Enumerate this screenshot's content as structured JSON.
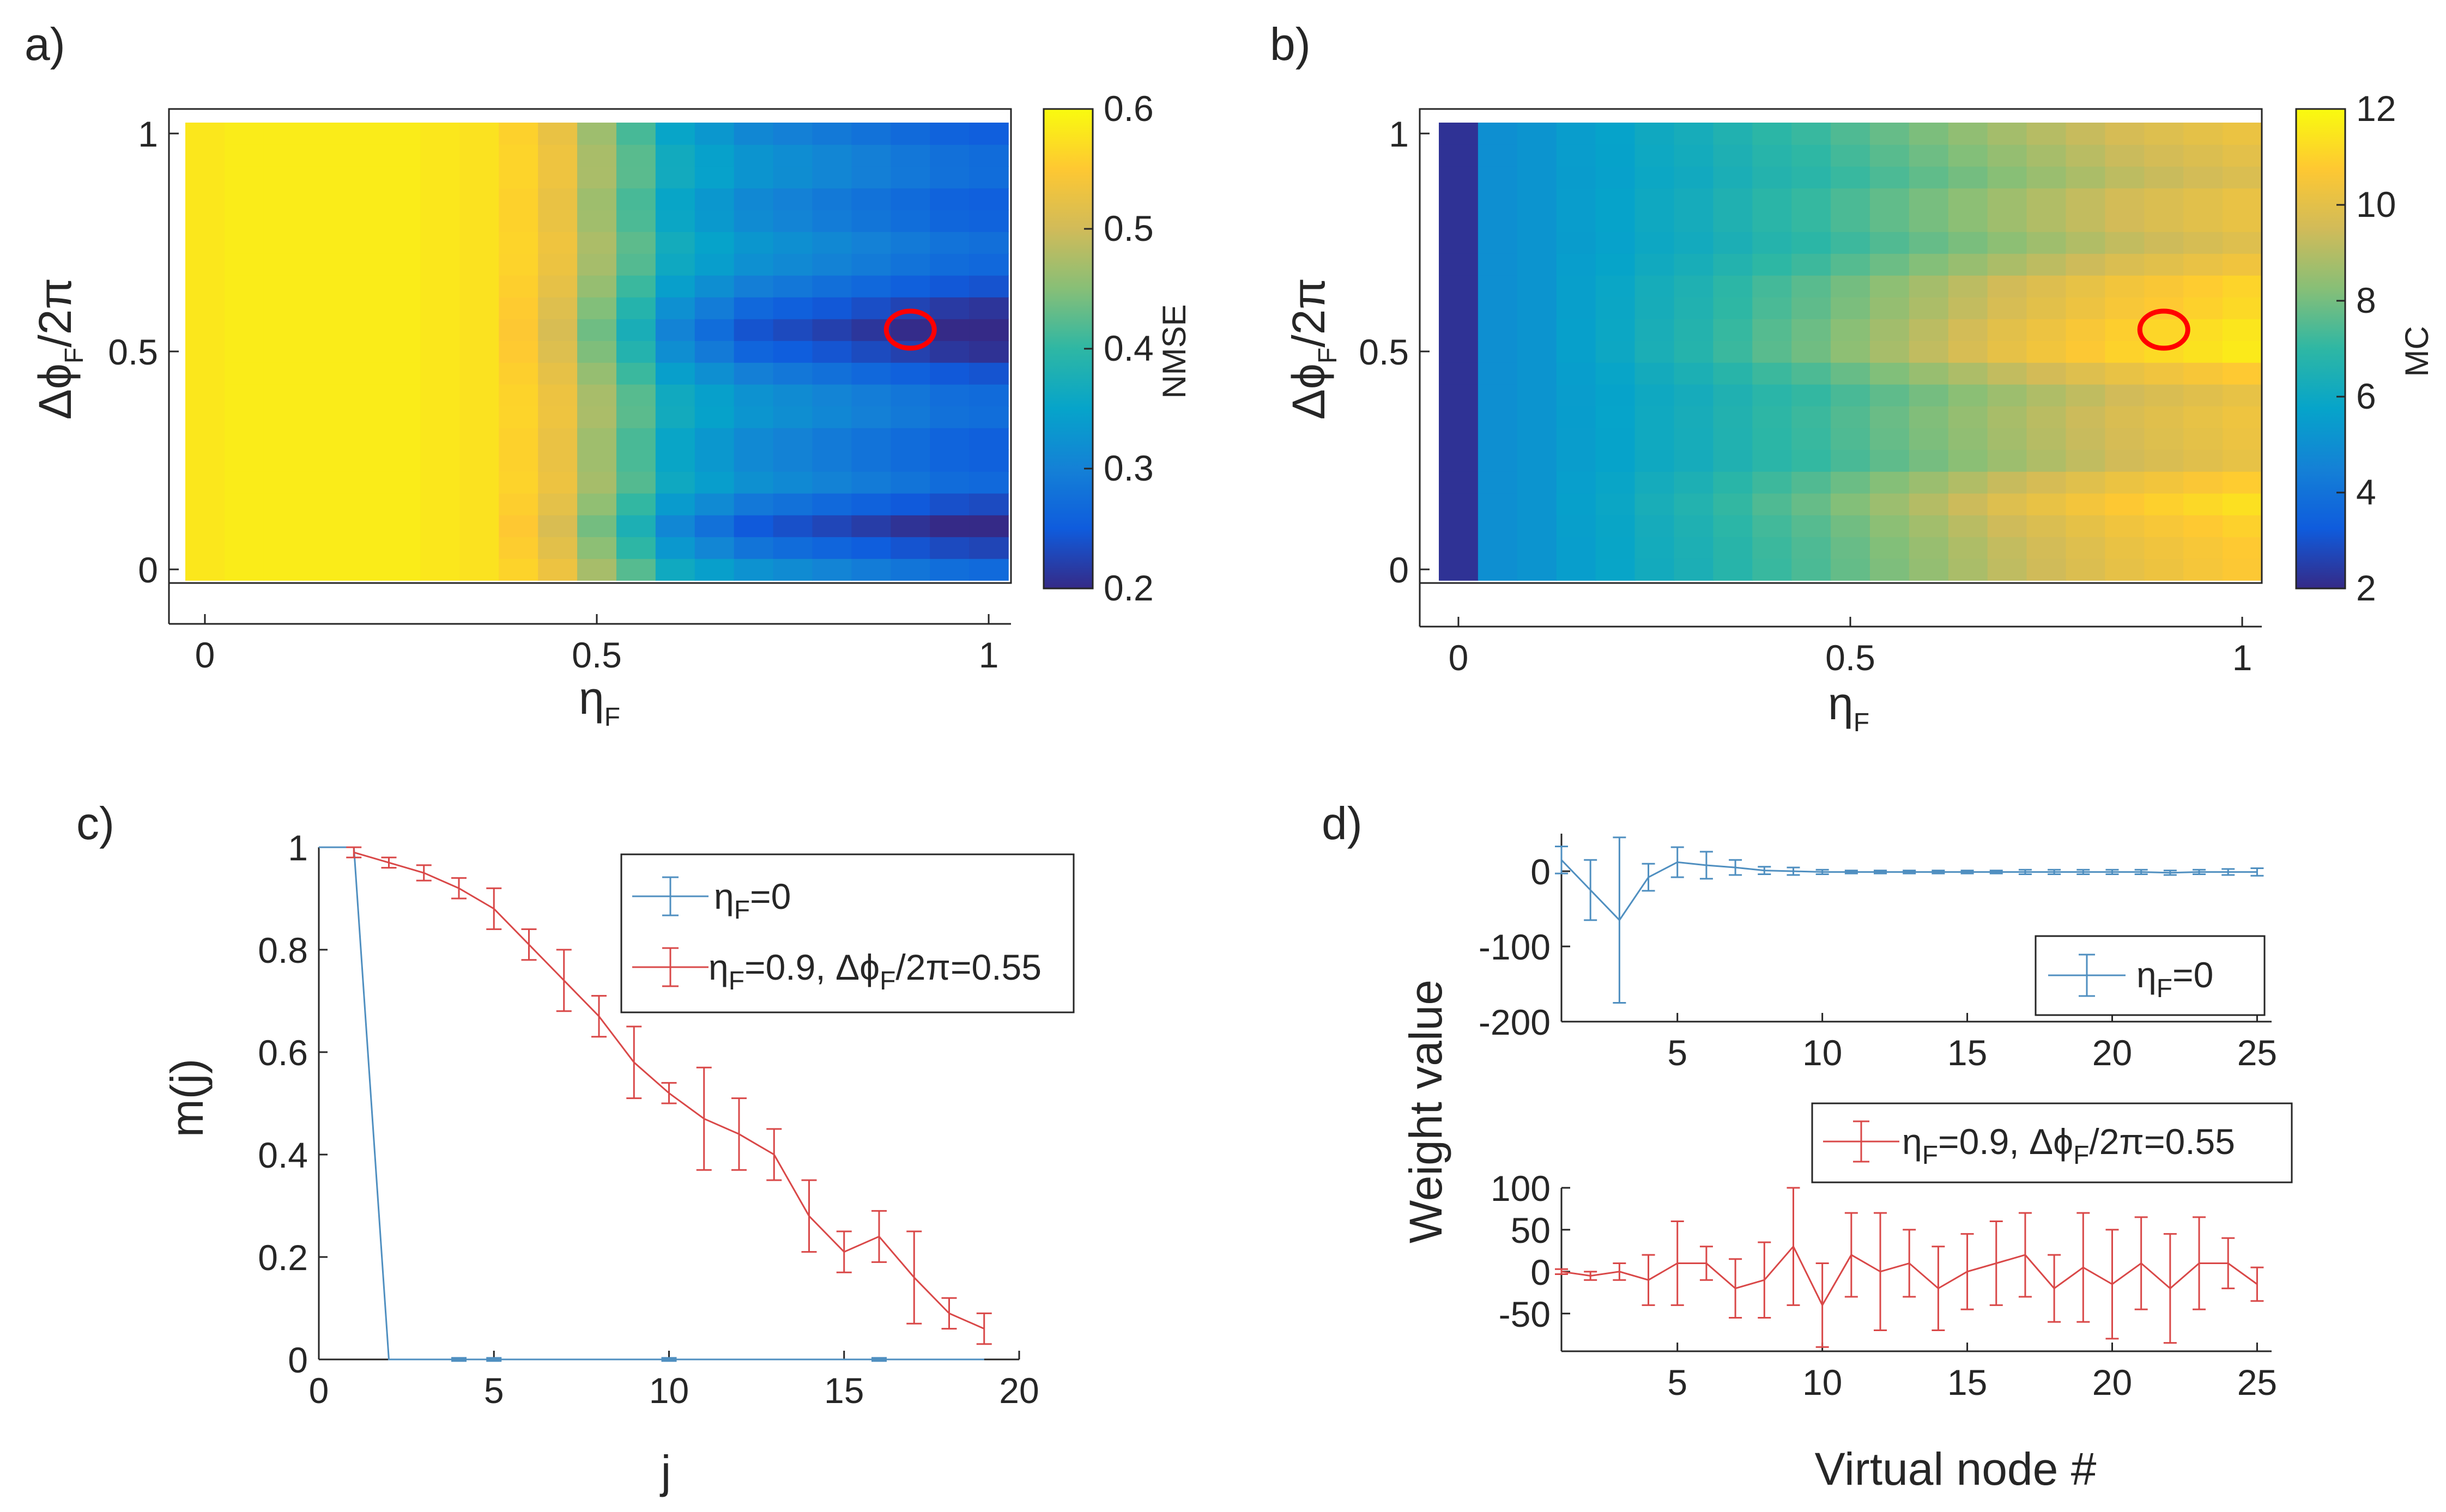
{
  "colors": {
    "series_eta0": "#4f8fc0",
    "series_eta09": "#d94848",
    "marker": "#ff0000",
    "axis": "#262626",
    "colormap": "parula"
  },
  "panels": {
    "a": "a)",
    "b": "b)",
    "c": "c)",
    "d": "d)"
  },
  "chart_data": [
    {
      "panel": "a",
      "type": "heatmap",
      "xlabel": "ηF",
      "ylabel": "ΔϕF/2π",
      "xlim": [
        0,
        1
      ],
      "ylim": [
        0,
        1
      ],
      "xticks": [
        "0",
        "0.5",
        "1"
      ],
      "yticks": [
        "0",
        "0.5",
        "1"
      ],
      "colorbar": {
        "label": "NMSE",
        "range": [
          0.2,
          0.6
        ],
        "ticks": [
          "0.2",
          "0.3",
          "0.4",
          "0.5",
          "0.6"
        ]
      },
      "grid_size": [
        21,
        21
      ],
      "x_profile": [
        0.58,
        0.585,
        0.585,
        0.585,
        0.585,
        0.585,
        0.58,
        0.575,
        0.56,
        0.53,
        0.47,
        0.42,
        0.36,
        0.34,
        0.32,
        0.31,
        0.3,
        0.29,
        0.28,
        0.27,
        0.265
      ],
      "y_minima": [
        {
          "y": 0.55,
          "depth": 0.09
        },
        {
          "y": 0.1,
          "depth": 0.06
        }
      ],
      "optimum_marker": {
        "x": 0.9,
        "y": 0.55
      }
    },
    {
      "panel": "b",
      "type": "heatmap",
      "xlabel": "ηF",
      "ylabel": "ΔϕF/2π",
      "xlim": [
        0,
        1
      ],
      "ylim": [
        0,
        1
      ],
      "xticks": [
        "0",
        "0.5",
        "1"
      ],
      "yticks": [
        "0",
        "0.5",
        "1"
      ],
      "colorbar": {
        "label": "MC",
        "range": [
          2,
          12
        ],
        "ticks": [
          "2",
          "4",
          "6",
          "8",
          "10",
          "12"
        ]
      },
      "grid_size": [
        21,
        21
      ],
      "x_profile": [
        2.2,
        5.0,
        5.2,
        5.5,
        5.7,
        6.0,
        6.2,
        6.5,
        6.8,
        7.0,
        7.3,
        7.6,
        7.9,
        8.2,
        8.5,
        8.8,
        9.1,
        9.4,
        9.6,
        9.8,
        10.0
      ],
      "y_maxima": [
        {
          "y": 0.55,
          "height": 1.6
        },
        {
          "y": 0.12,
          "height": 1.2
        }
      ],
      "optimum_marker": {
        "x": 0.9,
        "y": 0.55
      }
    },
    {
      "panel": "c",
      "type": "line",
      "xlabel": "j",
      "ylabel": "m(j)",
      "xlim": [
        0,
        20
      ],
      "ylim": [
        0,
        1
      ],
      "xticks": [
        "0",
        "5",
        "10",
        "15",
        "20"
      ],
      "yticks": [
        "0",
        "0.2",
        "0.4",
        "0.6",
        "0.8",
        "1"
      ],
      "series": [
        {
          "name": "ηF=0",
          "x": [
            0,
            1,
            2,
            3,
            4,
            5,
            6,
            7,
            8,
            9,
            10,
            11,
            12,
            13,
            14,
            15,
            16,
            17,
            18,
            19
          ],
          "y": [
            1,
            1,
            0,
            0,
            0,
            0,
            0,
            0,
            0,
            0,
            0,
            0,
            0,
            0,
            0,
            0,
            0,
            0,
            0,
            0
          ],
          "err": [
            0,
            0,
            0,
            0,
            0.003,
            0.003,
            0,
            0,
            0,
            0,
            0.003,
            0,
            0,
            0,
            0,
            0,
            0.003,
            0,
            0,
            0
          ]
        },
        {
          "name": "ηF=0.9, ΔϕF/2π=0.55",
          "x": [
            1,
            2,
            3,
            4,
            5,
            6,
            7,
            8,
            9,
            10,
            11,
            12,
            13,
            14,
            15,
            16,
            17,
            18,
            19
          ],
          "y": [
            0.99,
            0.97,
            0.95,
            0.92,
            0.88,
            0.81,
            0.74,
            0.67,
            0.58,
            0.52,
            0.47,
            0.44,
            0.4,
            0.28,
            0.21,
            0.24,
            0.16,
            0.09,
            0.06
          ],
          "err": [
            0.01,
            0.01,
            0.015,
            0.02,
            0.04,
            0.03,
            0.06,
            0.04,
            0.07,
            0.02,
            0.1,
            0.07,
            0.05,
            0.07,
            0.04,
            0.05,
            0.09,
            0.03,
            0.03
          ]
        }
      ],
      "legend": "top-right"
    },
    {
      "panel": "d",
      "type": "line",
      "xlabel": "Virtual node #",
      "ylabel": "Weight value",
      "subplots": [
        {
          "xlim": [
            1,
            25.5
          ],
          "ylim": [
            -200,
            50
          ],
          "xticks": [
            "5",
            "10",
            "15",
            "20",
            "25"
          ],
          "yticks": [
            "-200",
            "-100",
            "0"
          ],
          "series": [
            {
              "name": "ηF=0",
              "x": [
                1,
                2,
                3,
                4,
                5,
                6,
                7,
                8,
                9,
                10,
                11,
                12,
                13,
                14,
                15,
                16,
                17,
                18,
                19,
                20,
                21,
                22,
                23,
                24,
                25
              ],
              "y": [
                15,
                -25,
                -65,
                -8,
                12,
                8,
                5,
                1,
                0,
                -1,
                -1,
                -1,
                -1,
                -1,
                -1,
                -1,
                -1,
                -1,
                -1,
                -1,
                -1,
                -2,
                -1,
                -1,
                -1
              ],
              "err": [
                18,
                40,
                110,
                18,
                20,
                18,
                10,
                5,
                5,
                3,
                2,
                2,
                2,
                2,
                2,
                2,
                3,
                3,
                3,
                3,
                3,
                3,
                3,
                4,
                5
              ]
            }
          ],
          "legend": "bottom-right"
        },
        {
          "xlim": [
            1,
            25.5
          ],
          "ylim": [
            -95,
            100
          ],
          "xticks": [
            "5",
            "10",
            "15",
            "20",
            "25"
          ],
          "yticks": [
            "-50",
            "0",
            "50",
            "100"
          ],
          "series": [
            {
              "name": "ηF=0.9, ΔϕF/2π=0.55",
              "x": [
                1,
                2,
                3,
                4,
                5,
                6,
                7,
                8,
                9,
                10,
                11,
                12,
                13,
                14,
                15,
                16,
                17,
                18,
                19,
                20,
                21,
                22,
                23,
                24,
                25
              ],
              "y": [
                0,
                -5,
                0,
                -10,
                10,
                10,
                -20,
                -10,
                30,
                -40,
                20,
                0,
                10,
                -20,
                0,
                10,
                20,
                -20,
                5,
                -15,
                10,
                -20,
                10,
                10,
                -15
              ],
              "err": [
                3,
                5,
                10,
                30,
                50,
                20,
                35,
                45,
                70,
                50,
                50,
                70,
                40,
                50,
                45,
                50,
                50,
                40,
                65,
                65,
                55,
                65,
                55,
                30,
                20
              ]
            }
          ],
          "legend": "top"
        }
      ]
    }
  ]
}
